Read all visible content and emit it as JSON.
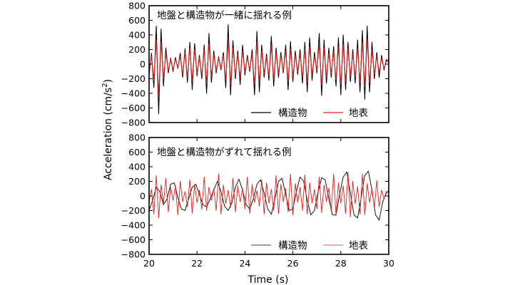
{
  "chart_data": [
    {
      "type": "line",
      "title": "地盤と構造物が一緒に揺れる例",
      "xlim": [
        20,
        30
      ],
      "ylim": [
        -800,
        800
      ],
      "xticks": [
        20,
        22,
        24,
        26,
        28,
        30
      ],
      "yticks": [
        -800,
        -600,
        -400,
        -200,
        0,
        200,
        400,
        600,
        800
      ],
      "legend_position": "bottom-right",
      "grid": false,
      "series": [
        {
          "name": "構造物",
          "color": "#000000",
          "x": [
            20.0,
            20.1,
            20.2,
            20.3,
            20.4,
            20.5,
            20.6,
            20.7,
            20.8,
            20.9,
            21.0,
            21.1,
            21.2,
            21.3,
            21.4,
            21.5,
            21.6,
            21.7,
            21.8,
            21.9,
            22.0,
            22.1,
            22.2,
            22.3,
            22.4,
            22.5,
            22.6,
            22.7,
            22.8,
            22.9,
            23.0,
            23.1,
            23.2,
            23.3,
            23.4,
            23.5,
            23.6,
            23.7,
            23.8,
            23.9,
            24.0,
            24.1,
            24.2,
            24.3,
            24.4,
            24.5,
            24.6,
            24.7,
            24.8,
            24.9,
            25.0,
            25.1,
            25.2,
            25.3,
            25.4,
            25.5,
            25.6,
            25.7,
            25.8,
            25.9,
            26.0,
            26.1,
            26.2,
            26.3,
            26.4,
            26.5,
            26.6,
            26.7,
            26.8,
            26.9,
            27.0,
            27.1,
            27.2,
            27.3,
            27.4,
            27.5,
            27.6,
            27.7,
            27.8,
            27.9,
            28.0,
            28.1,
            28.2,
            28.3,
            28.4,
            28.5,
            28.6,
            28.7,
            28.8,
            28.9,
            29.0,
            29.1,
            29.2,
            29.3,
            29.4,
            29.5,
            29.6,
            29.7,
            29.8,
            29.9,
            30.0
          ],
          "values": [
            -150,
            150,
            -320,
            520,
            -680,
            480,
            -300,
            220,
            -120,
            80,
            -100,
            90,
            -60,
            150,
            -180,
            210,
            -250,
            300,
            -350,
            280,
            -160,
            120,
            -200,
            260,
            -400,
            420,
            -250,
            180,
            -120,
            100,
            -80,
            160,
            -320,
            540,
            -420,
            320,
            -200,
            180,
            -280,
            260,
            -150,
            120,
            -100,
            200,
            -420,
            450,
            -380,
            260,
            -180,
            140,
            -220,
            380,
            -300,
            220,
            -180,
            160,
            -120,
            260,
            -350,
            310,
            -240,
            180,
            -140,
            200,
            -260,
            300,
            -380,
            360,
            -220,
            160,
            -120,
            420,
            -430,
            330,
            -260,
            220,
            -180,
            240,
            -300,
            360,
            -420,
            400,
            -350,
            300,
            -240,
            200,
            -260,
            330,
            -380,
            460,
            -480,
            520,
            -380,
            300,
            -200,
            160,
            -180,
            120,
            -80,
            60,
            50
          ]
        },
        {
          "name": "地表",
          "color": "#e0201c",
          "x": [
            20.0,
            20.1,
            20.2,
            20.3,
            20.4,
            20.5,
            20.6,
            20.7,
            20.8,
            20.9,
            21.0,
            21.1,
            21.2,
            21.3,
            21.4,
            21.5,
            21.6,
            21.7,
            21.8,
            21.9,
            22.0,
            22.1,
            22.2,
            22.3,
            22.4,
            22.5,
            22.6,
            22.7,
            22.8,
            22.9,
            23.0,
            23.1,
            23.2,
            23.3,
            23.4,
            23.5,
            23.6,
            23.7,
            23.8,
            23.9,
            24.0,
            24.1,
            24.2,
            24.3,
            24.4,
            24.5,
            24.6,
            24.7,
            24.8,
            24.9,
            25.0,
            25.1,
            25.2,
            25.3,
            25.4,
            25.5,
            25.6,
            25.7,
            25.8,
            25.9,
            26.0,
            26.1,
            26.2,
            26.3,
            26.4,
            26.5,
            26.6,
            26.7,
            26.8,
            26.9,
            27.0,
            27.1,
            27.2,
            27.3,
            27.4,
            27.5,
            27.6,
            27.7,
            27.8,
            27.9,
            28.0,
            28.1,
            28.2,
            28.3,
            28.4,
            28.5,
            28.6,
            28.7,
            28.8,
            28.9,
            29.0,
            29.1,
            29.2,
            29.3,
            29.4,
            29.5,
            29.6,
            29.7,
            29.8,
            29.9,
            30.0
          ],
          "values": [
            -100,
            110,
            -220,
            330,
            -420,
            300,
            -200,
            150,
            -90,
            60,
            -80,
            70,
            -50,
            110,
            -140,
            160,
            -180,
            220,
            -240,
            200,
            -120,
            90,
            -150,
            190,
            -260,
            280,
            -170,
            130,
            -90,
            80,
            -60,
            120,
            -220,
            320,
            -280,
            220,
            -150,
            130,
            -190,
            180,
            -110,
            90,
            -80,
            140,
            -280,
            300,
            -250,
            180,
            -130,
            100,
            -160,
            260,
            -210,
            160,
            -130,
            120,
            -90,
            180,
            -240,
            210,
            -170,
            130,
            -100,
            140,
            -180,
            210,
            -250,
            240,
            -150,
            110,
            -90,
            280,
            -290,
            220,
            -180,
            150,
            -130,
            170,
            -210,
            240,
            -280,
            270,
            -240,
            210,
            -170,
            140,
            -180,
            220,
            -250,
            300,
            -310,
            340,
            -250,
            200,
            -140,
            110,
            -120,
            80,
            -60,
            40,
            30
          ]
        }
      ]
    },
    {
      "type": "line",
      "title": "地盤と構造物がずれて揺れる例",
      "xlim": [
        20,
        30
      ],
      "ylim": [
        -800,
        800
      ],
      "xticks": [
        20,
        22,
        24,
        26,
        28,
        30
      ],
      "yticks": [
        -800,
        -600,
        -400,
        -200,
        0,
        200,
        400,
        600,
        800
      ],
      "xlabel": "Time (s)",
      "legend_position": "bottom-right",
      "grid": false,
      "series": [
        {
          "name": "構造物",
          "color": "#000000",
          "x": [
            20.0,
            20.15,
            20.3,
            20.45,
            20.6,
            20.75,
            20.9,
            21.05,
            21.2,
            21.35,
            21.5,
            21.65,
            21.8,
            21.95,
            22.1,
            22.25,
            22.4,
            22.55,
            22.7,
            22.85,
            23.0,
            23.15,
            23.3,
            23.45,
            23.6,
            23.75,
            23.9,
            24.05,
            24.2,
            24.35,
            24.5,
            24.65,
            24.8,
            24.95,
            25.1,
            25.25,
            25.4,
            25.55,
            25.7,
            25.85,
            26.0,
            26.15,
            26.3,
            26.45,
            26.6,
            26.75,
            26.9,
            27.05,
            27.2,
            27.35,
            27.5,
            27.65,
            27.8,
            27.95,
            28.1,
            28.25,
            28.4,
            28.55,
            28.7,
            28.85,
            29.0,
            29.15,
            29.3,
            29.45,
            29.6,
            29.75,
            29.9,
            30.0
          ],
          "values": [
            -200,
            -60,
            120,
            60,
            -120,
            -40,
            160,
            180,
            -20,
            -180,
            -200,
            -40,
            120,
            160,
            20,
            -120,
            -150,
            -40,
            80,
            200,
            60,
            -140,
            -200,
            -100,
            120,
            230,
            80,
            -120,
            -180,
            -40,
            160,
            220,
            40,
            -180,
            -250,
            -40,
            200,
            240,
            20,
            -200,
            -180,
            60,
            260,
            200,
            -60,
            -260,
            -200,
            60,
            250,
            220,
            -40,
            -260,
            -260,
            20,
            260,
            330,
            40,
            -260,
            -300,
            -20,
            280,
            340,
            80,
            -260,
            -330,
            -80,
            40,
            60
          ]
        },
        {
          "name": "地表",
          "color": "#e0201c",
          "x": [
            20.0,
            20.1,
            20.2,
            20.3,
            20.4,
            20.5,
            20.6,
            20.7,
            20.8,
            20.9,
            21.0,
            21.1,
            21.2,
            21.3,
            21.4,
            21.5,
            21.6,
            21.7,
            21.8,
            21.9,
            22.0,
            22.1,
            22.2,
            22.3,
            22.4,
            22.5,
            22.6,
            22.7,
            22.8,
            22.9,
            23.0,
            23.1,
            23.2,
            23.3,
            23.4,
            23.5,
            23.6,
            23.7,
            23.8,
            23.9,
            24.0,
            24.1,
            24.2,
            24.3,
            24.4,
            24.5,
            24.6,
            24.7,
            24.8,
            24.9,
            25.0,
            25.1,
            25.2,
            25.3,
            25.4,
            25.5,
            25.6,
            25.7,
            25.8,
            25.9,
            26.0,
            26.1,
            26.2,
            26.3,
            26.4,
            26.5,
            26.6,
            26.7,
            26.8,
            26.9,
            27.0,
            27.1,
            27.2,
            27.3,
            27.4,
            27.5,
            27.6,
            27.7,
            27.8,
            27.9,
            28.0,
            28.1,
            28.2,
            28.3,
            28.4,
            28.5,
            28.6,
            28.7,
            28.8,
            28.9,
            29.0,
            29.1,
            29.2,
            29.3,
            29.4,
            29.5,
            29.6,
            29.7,
            29.8,
            29.9,
            30.0
          ],
          "values": [
            -80,
            90,
            -250,
            280,
            -300,
            150,
            -100,
            240,
            -220,
            120,
            -60,
            140,
            -260,
            200,
            -80,
            60,
            -150,
            220,
            -240,
            160,
            -90,
            80,
            -180,
            260,
            -200,
            120,
            -60,
            100,
            -200,
            300,
            -250,
            150,
            -100,
            80,
            -160,
            240,
            -220,
            140,
            -80,
            100,
            -180,
            260,
            -240,
            160,
            -90,
            70,
            -140,
            220,
            -250,
            180,
            -100,
            90,
            -200,
            280,
            -240,
            160,
            -80,
            100,
            -220,
            300,
            -260,
            170,
            -90,
            120,
            -200,
            290,
            -250,
            180,
            -100,
            90,
            -180,
            260,
            -230,
            150,
            -80,
            110,
            -210,
            300,
            -270,
            180,
            -100,
            140,
            -240,
            320,
            -290,
            200,
            -110,
            130,
            -250,
            300,
            -260,
            170,
            -90,
            100,
            -170,
            210,
            -150,
            80,
            -40,
            60,
            70
          ]
        }
      ]
    }
  ],
  "ylabel": "Acceleration (cm/s",
  "ylabel_sup": "2",
  "ylabel_end": ")"
}
